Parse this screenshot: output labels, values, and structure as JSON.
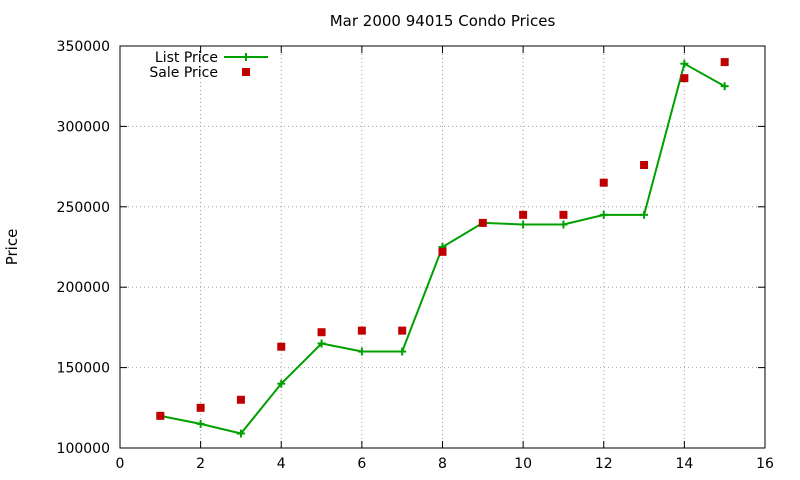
{
  "chart_data": {
    "type": "line",
    "title": "Mar 2000 94015 Condo Prices",
    "xlabel": "",
    "ylabel": "Price",
    "xlim": [
      0,
      16
    ],
    "ylim": [
      100000,
      350000
    ],
    "xticks": [
      0,
      2,
      4,
      6,
      8,
      10,
      12,
      14,
      16
    ],
    "yticks": [
      100000,
      150000,
      200000,
      250000,
      300000,
      350000
    ],
    "grid": true,
    "legend_position": "top-left",
    "series": [
      {
        "name": "List Price",
        "style": "line-with-plus-markers",
        "color": "#00a000",
        "x": [
          1,
          2,
          3,
          4,
          5,
          6,
          7,
          8,
          9,
          10,
          11,
          12,
          13,
          14,
          15
        ],
        "y": [
          120000,
          115000,
          109000,
          140000,
          165000,
          160000,
          160000,
          225000,
          240000,
          239000,
          239000,
          245000,
          245000,
          339000,
          325000
        ]
      },
      {
        "name": "Sale Price",
        "style": "square-markers",
        "color": "#c00000",
        "x": [
          1,
          2,
          3,
          4,
          5,
          6,
          7,
          8,
          9,
          10,
          11,
          12,
          13,
          14,
          15
        ],
        "y": [
          120000,
          125000,
          130000,
          163000,
          172000,
          173000,
          173000,
          222000,
          240000,
          245000,
          245000,
          265000,
          276000,
          330000,
          340000
        ]
      }
    ]
  }
}
